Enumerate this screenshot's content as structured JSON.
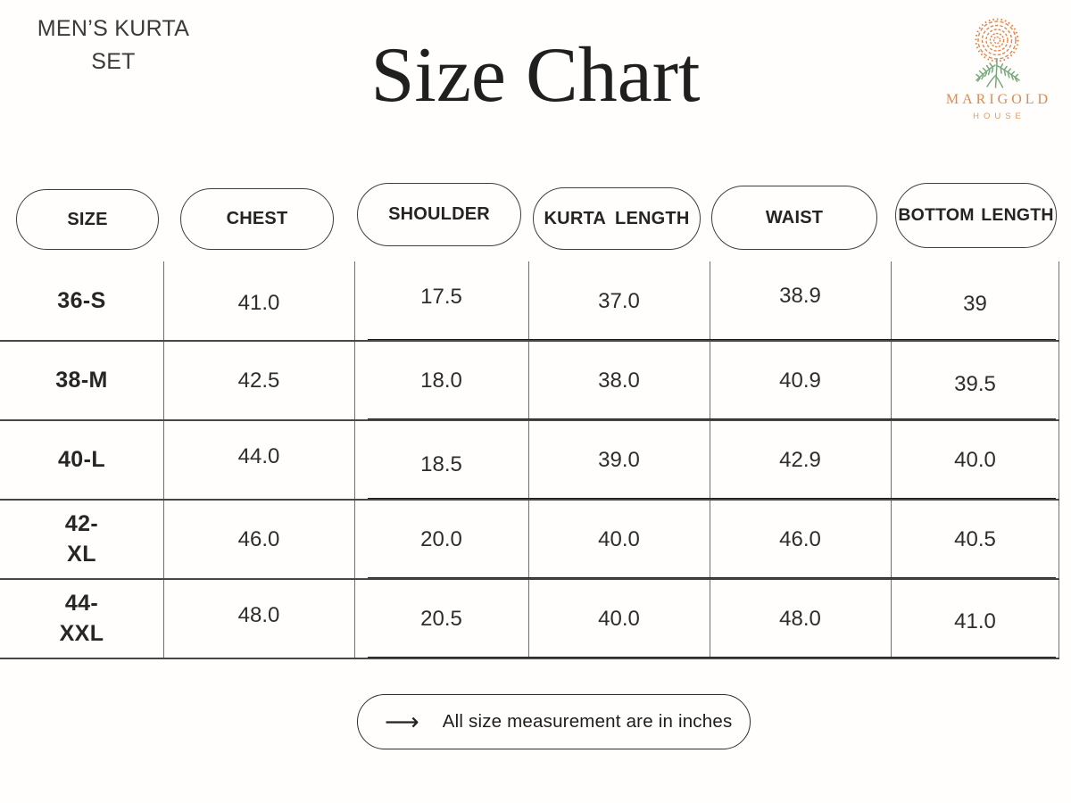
{
  "header": {
    "product_label": "MEN’S KURTA SET",
    "title": "Size Chart"
  },
  "logo": {
    "brand": "MARIGOLD",
    "subtitle": "HOUSE",
    "flower_color": "#E0884C",
    "leaf_color": "#7AA87E",
    "text_color": "#DD8A4F"
  },
  "chart_data": {
    "type": "table",
    "title": "Size Chart",
    "columns": [
      "SIZE",
      "CHEST",
      "SHOULDER",
      "KURTA LENGTH",
      "WAIST",
      "BOTTOM LENGTH"
    ],
    "rows": [
      {
        "size": "36-S",
        "values": [
          "41.0",
          "17.5",
          "37.0",
          "38.9",
          "39"
        ]
      },
      {
        "size": "38-M",
        "values": [
          "42.5",
          "18.0",
          "38.0",
          "40.9",
          "39.5"
        ]
      },
      {
        "size": "40-L",
        "values": [
          "44.0",
          "18.5",
          "39.0",
          "42.9",
          "40.0"
        ]
      },
      {
        "size": "42-XL",
        "values": [
          "46.0",
          "20.0",
          "40.0",
          "46.0",
          "40.5"
        ]
      },
      {
        "size": "44-XXL",
        "values": [
          "48.0",
          "20.5",
          "40.0",
          "48.0",
          "41.0"
        ]
      }
    ],
    "units": "inches"
  },
  "footer": {
    "arrow_glyph": "⟶",
    "note": "All size measurement are in inches"
  }
}
